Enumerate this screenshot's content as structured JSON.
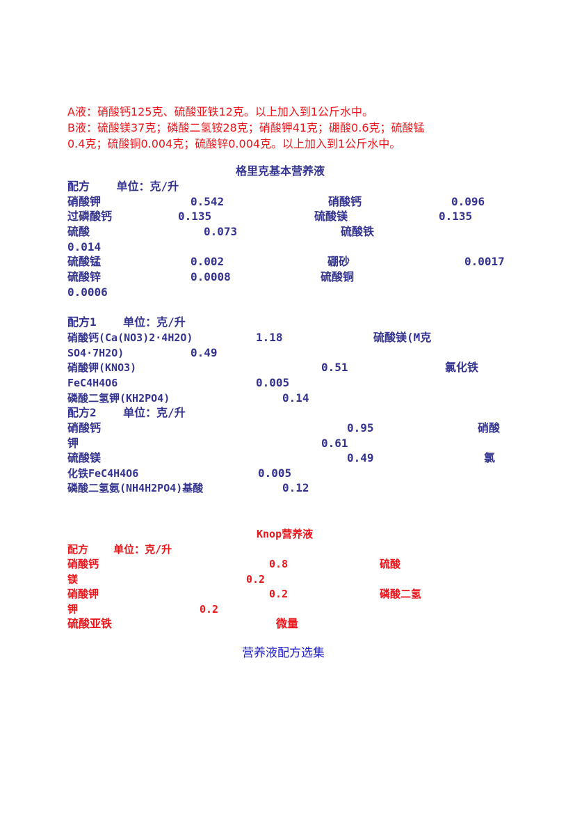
{
  "solution_ab": {
    "line1": "A液：硝酸钙125克、硫酸亚铁12克。以上加入到1公斤水中。",
    "line2": "B液：硫酸镁37克；磷酸二氢铵28克；硝酸钾41克；硼酸0.6克；硫酸锰",
    "line3": "0.4克；硫酸铜0.004克；硫酸锌0.004克。以上加入到1公斤水中。"
  },
  "gericke": {
    "title": "格里克基本营养液",
    "header": "配方    单位：克/升",
    "r1": [
      "硝酸钾",
      "0.542",
      "硝酸钙",
      "0.096"
    ],
    "r2": [
      "过磷酸钙",
      "0.135",
      "硫酸镁",
      "0.135"
    ],
    "r3": [
      "硫酸",
      "0.073",
      "硫酸铁"
    ],
    "r3b": "0.014",
    "r4": [
      "硫酸锰",
      "0.002",
      "硼砂",
      "0.0017"
    ],
    "r5": [
      "硫酸锌",
      "0.0008",
      "硫酸铜"
    ],
    "r5b": "0.0006"
  },
  "formula1": {
    "header": "配方1    单位：克/升",
    "r1": [
      "硝酸钙(Ca(NO3)2·4H2O)",
      "1.18",
      "硫酸镁(M克"
    ],
    "r2": [
      "SO4·7H2O)",
      "0.49"
    ],
    "r3": [
      "硝酸钾(KNO3)",
      "0.51",
      "氯化铁"
    ],
    "r4": [
      "FeC4H4O6",
      "0.005"
    ],
    "r5": [
      "磷酸二氢钾(KH2PO4)",
      "0.14"
    ]
  },
  "formula2": {
    "header": "配方2    单位：克/升",
    "r1": [
      "硝酸钙",
      "0.95",
      "硝酸"
    ],
    "r2": [
      "钾",
      "0.61"
    ],
    "r3": [
      "硫酸镁",
      "0.49",
      "氯"
    ],
    "r4": [
      "化铁FeC4H4O6",
      "0.005"
    ],
    "r5": [
      "磷酸二氢氨(NH4H2PO4)基酸",
      "0.12"
    ]
  },
  "knop": {
    "title": "Knop营养液",
    "header": "配方    单位：克/升",
    "r1": [
      "硝酸钙",
      "0.8",
      "硫酸"
    ],
    "r2": [
      "镁",
      "0.2"
    ],
    "r3": [
      "硝酸钾",
      "0.2",
      "磷酸二氢"
    ],
    "r4": [
      "钾",
      "0.2"
    ],
    "r5": [
      "硫酸亚铁",
      "微量"
    ]
  },
  "footer": "营养液配方选集",
  "colors": {
    "red": "#e8161b",
    "navy": "#33338f",
    "blue": "#2020c0"
  }
}
